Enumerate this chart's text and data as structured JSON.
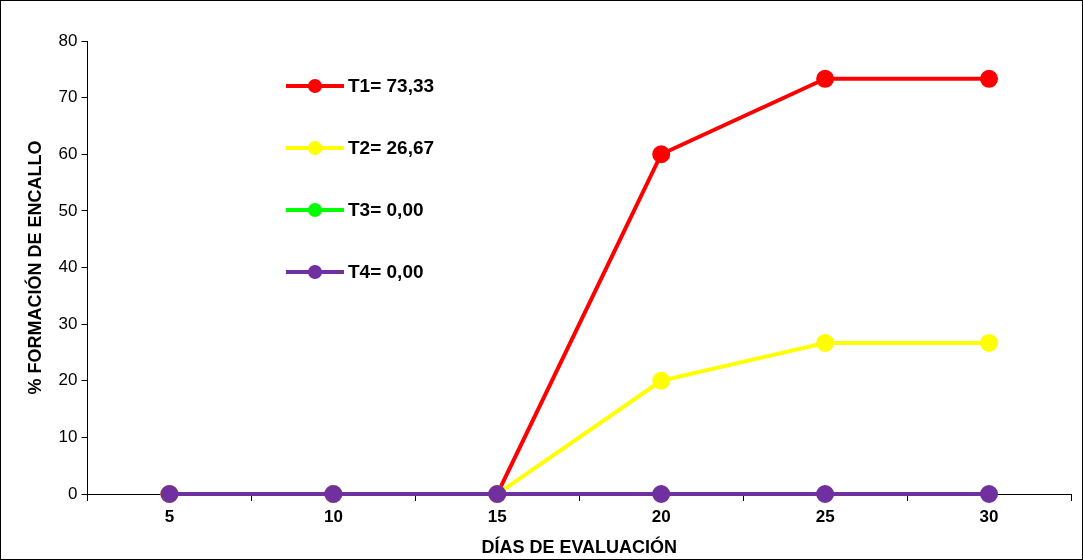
{
  "chart_data": {
    "type": "line",
    "xlabel": "DÍAS DE EVALUACIÓN",
    "ylabel": "% FORMACIÓN DE ENCALLO",
    "categories": [
      "5",
      "10",
      "15",
      "20",
      "25",
      "30"
    ],
    "series": [
      {
        "name": "T1= 73,33",
        "color": "#ff0000",
        "values": [
          0,
          0,
          0,
          60,
          73.33,
          73.33
        ]
      },
      {
        "name": "T2= 26,67",
        "color": "#ffff00",
        "values": [
          0,
          0,
          0,
          20,
          26.67,
          26.67
        ]
      },
      {
        "name": "T3= 0,00",
        "color": "#00ff00",
        "values": [
          null,
          null,
          null,
          null,
          null,
          null
        ]
      },
      {
        "name": "T4= 0,00",
        "color": "#7030a0",
        "values": [
          0,
          0,
          0,
          0,
          0,
          0
        ]
      }
    ],
    "ylim": [
      0,
      80
    ],
    "yticks": [
      0,
      10,
      20,
      30,
      40,
      50,
      60,
      70,
      80
    ],
    "grid": false,
    "legend": "top left",
    "marker": "circle",
    "line_style": "solid"
  }
}
